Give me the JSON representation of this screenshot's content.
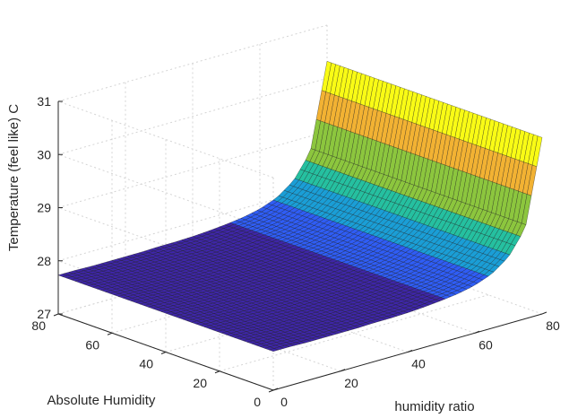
{
  "chart_data": {
    "type": "surface",
    "title": "",
    "xlabel": "humidity ratio",
    "ylabel": "Absolute Humidity",
    "zlabel": "Temperature (feel like) C",
    "xlim": [
      0,
      80
    ],
    "ylim": [
      0,
      80
    ],
    "zlim": [
      27,
      31
    ],
    "x_ticks": [
      0,
      20,
      40,
      60,
      80
    ],
    "y_ticks": [
      0,
      20,
      40,
      60,
      80
    ],
    "z_ticks": [
      27,
      28,
      29,
      30,
      31
    ],
    "x_tick_labels": [
      "0",
      "20",
      "40",
      "60",
      "80"
    ],
    "y_tick_labels": [
      "0",
      "20",
      "40",
      "60",
      "80"
    ],
    "z_tick_labels": [
      "27",
      "28",
      "29",
      "30",
      "31"
    ],
    "grid": true,
    "box": "open",
    "colormap": [
      "#3e26a8",
      "#2f5df5",
      "#1a9ed6",
      "#25c0a0",
      "#8cc63e",
      "#f2b233",
      "#f9fb15"
    ],
    "surface": {
      "description_values": "z depends on x only",
      "x": [
        0,
        5,
        10,
        15,
        20,
        25,
        30,
        35,
        40,
        45,
        50,
        55,
        60,
        65,
        70,
        75,
        80
      ],
      "y_range": [
        0,
        80
      ],
      "z": [
        27.73,
        27.73,
        27.72,
        27.72,
        27.72,
        27.72,
        27.73,
        27.73,
        27.74,
        27.76,
        27.79,
        27.83,
        27.9,
        28.02,
        28.25,
        28.7,
        30.32
      ]
    }
  }
}
